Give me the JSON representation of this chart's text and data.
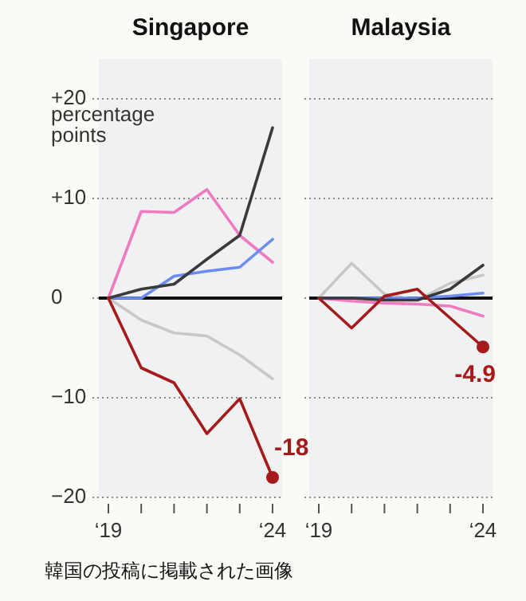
{
  "chart_data": [
    {
      "type": "line",
      "title": "Singapore",
      "ylabel": "percentage points",
      "categories": [
        "‘19",
        null,
        null,
        null,
        null,
        "‘24"
      ],
      "ylim": [
        -20,
        24
      ],
      "yticks": [
        {
          "value": 20,
          "label": "+20"
        },
        {
          "value": 10,
          "label": "+10"
        },
        0,
        {
          "value": -10,
          "label": "−10"
        },
        {
          "value": -20,
          "label": "−20"
        }
      ],
      "grid": "y",
      "ref_lines": [
        {
          "axis": "y",
          "value": 0,
          "color": "#111111"
        }
      ],
      "series": [
        {
          "color": "#c8c8c8",
          "values": [
            0,
            -2.2,
            -3.5,
            -3.8,
            -5.7,
            -8.1
          ]
        },
        {
          "color": "#f07ac0",
          "values": [
            0,
            8.7,
            8.6,
            10.9,
            6.3,
            3.6
          ]
        },
        {
          "color": "#6b8cf0",
          "values": [
            0,
            0,
            2.2,
            2.7,
            3.1,
            5.9
          ]
        },
        {
          "color": "#3a3a3a",
          "values": [
            0,
            0.9,
            1.4,
            3.9,
            6.3,
            17.1
          ]
        },
        {
          "color": "#a51a1a",
          "values": [
            0,
            -7.0,
            -8.5,
            -13.6,
            -10.1,
            -18
          ]
        }
      ],
      "annotations": [
        {
          "text": "-18",
          "x": "‘24",
          "y": -18
        },
        "韓国の投稿に掲載された画像"
      ]
    },
    {
      "type": "line",
      "title": "Malaysia",
      "categories": [
        "‘19",
        null,
        null,
        null,
        null,
        "‘24"
      ],
      "ylim": [
        -20,
        24
      ],
      "tick_labels": "x",
      "yticks": [
        {
          "value": 20,
          "label": null
        },
        {
          "value": 10,
          "label": null
        },
        {
          "value": 0,
          "label": null
        },
        {
          "value": -10,
          "label": null
        },
        {
          "value": -20,
          "label": null
        }
      ],
      "grid": "y",
      "ref_lines": [
        {
          "axis": "y",
          "value": 0,
          "color": "#111111"
        }
      ],
      "series": [
        {
          "color": "#c8c8c8",
          "values": [
            0,
            3.5,
            0.4,
            -0.2,
            1.5,
            2.3
          ]
        },
        {
          "color": "#f07ac0",
          "values": [
            0,
            -0.3,
            -0.5,
            -0.6,
            -0.8,
            -1.8
          ]
        },
        {
          "color": "#6b8cf0",
          "values": [
            0,
            0,
            0,
            0,
            0.2,
            0.5
          ]
        },
        {
          "color": "#3a3a3a",
          "values": [
            0,
            0,
            -0.2,
            -0.2,
            0.9,
            3.3
          ]
        },
        {
          "color": "#a51a1a",
          "values": [
            0,
            -3.0,
            0.2,
            0.9,
            -2.0,
            -4.9
          ]
        }
      ],
      "annotations": [
        {
          "text": "-4.9",
          "x": "‘24",
          "y": -4.9
        }
      ]
    }
  ]
}
